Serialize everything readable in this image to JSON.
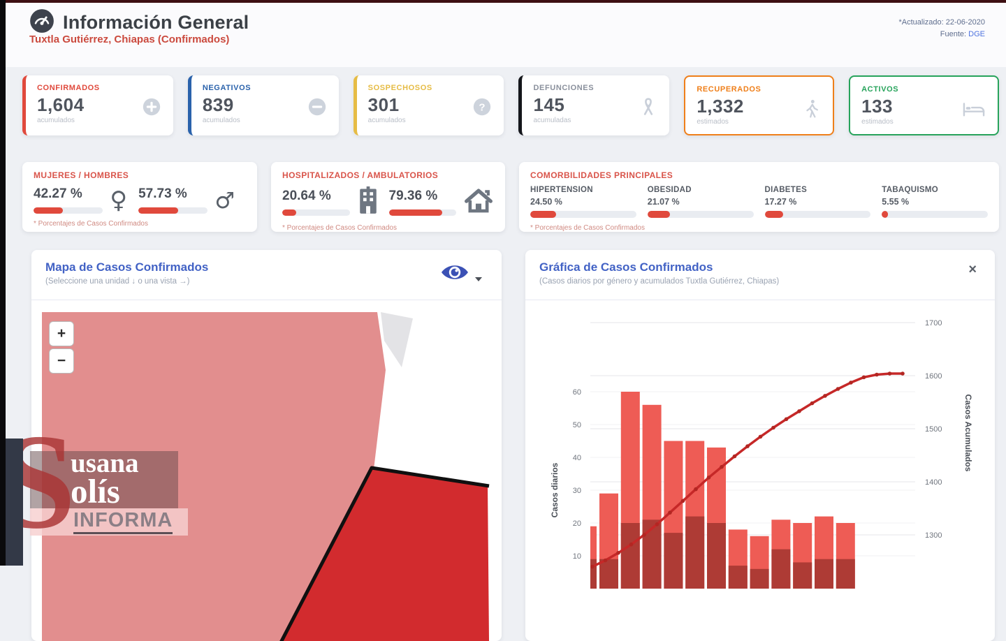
{
  "header": {
    "title": "Información General",
    "subtitle": "Tuxtla Gutiérrez, Chiapas (Confirmados)",
    "updated": "*Actualizado: 22-06-2020",
    "source_label": "Fuente:",
    "source_value": "DGE"
  },
  "stats": {
    "cards": [
      {
        "label": "CONFIRMADOS",
        "value": "1,604",
        "sub": "acumulados",
        "icon": "plus-circle-icon",
        "color": "#e0493c",
        "border_style": "left"
      },
      {
        "label": "NEGATIVOS",
        "value": "839",
        "sub": "acumulados",
        "icon": "minus-circle-icon",
        "color": "#2a62ab",
        "border_style": "left"
      },
      {
        "label": "SOSPECHOSOS",
        "value": "301",
        "sub": "acumulados",
        "icon": "question-circle-icon",
        "color": "#e6bc45",
        "border_style": "left"
      },
      {
        "label": "DEFUNCIONES",
        "value": "145",
        "sub": "acumuladas",
        "icon": "ribbon-icon",
        "color": "#14161b",
        "label_color": "#8a909c",
        "border_style": "left"
      },
      {
        "label": "RECUPERADOS",
        "value": "1,332",
        "sub": "estimados",
        "icon": "walking-person-icon",
        "color": "#ef7f1a",
        "border_style": "full"
      },
      {
        "label": "ACTIVOS",
        "value": "133",
        "sub": "estimados",
        "icon": "bed-icon",
        "color": "#27a35b",
        "border_style": "full"
      }
    ]
  },
  "gender_card": {
    "title": "MUJERES / HOMBRES",
    "left_value": "42.27 %",
    "left_pct": 42.27,
    "female_symbol": "♀",
    "right_value": "57.73 %",
    "right_pct": 57.73,
    "male_symbol": "♂",
    "note": "* Porcentajes de Casos Confirmados"
  },
  "hosp_card": {
    "title": "HOSPITALIZADOS / AMBULATORIOS",
    "left_value": "20.64 %",
    "left_pct": 20.64,
    "right_value": "79.36 %",
    "right_pct": 79.36,
    "note": "* Porcentajes de Casos Confirmados"
  },
  "comorbidities_card": {
    "title": "COMORBILIDADES PRINCIPALES",
    "note": "* Porcentajes de Casos Confirmados",
    "items": [
      {
        "label": "HIPERTENSION",
        "value": "24.50 %",
        "pct": 24.5
      },
      {
        "label": "OBESIDAD",
        "value": "21.07 %",
        "pct": 21.07
      },
      {
        "label": "DIABETES",
        "value": "17.27 %",
        "pct": 17.27
      },
      {
        "label": "TABAQUISMO",
        "value": "5.55 %",
        "pct": 5.55
      }
    ]
  },
  "map_card": {
    "title": "Mapa de Casos Confirmados",
    "subtitle": "(Seleccione una unidad ↓ o una vista →)",
    "zoom_in": "+",
    "zoom_out": "−"
  },
  "chart_card": {
    "title": "Gráfica de Casos Confirmados",
    "subtitle": "(Casos diarios por género y acumulados Tuxtla Gutiérrez, Chiapas)",
    "close": "×"
  },
  "watermark": {
    "initial": "S",
    "line1": "usana",
    "line2": "olís",
    "line3": "INFORMA"
  },
  "chart_data": {
    "type": "bar+line",
    "title": "Gráfica de Casos Confirmados",
    "ylabel_left": "Casos diarios",
    "ylabel_right": "Casos Acumulados",
    "yticks_left": [
      10,
      20,
      30,
      40,
      50,
      60
    ],
    "yticks_right": [
      1300,
      1400,
      1500,
      1600,
      1700
    ],
    "ylim_left": [
      0,
      70
    ],
    "ylim_right": [
      1240,
      1720
    ],
    "grid": true,
    "series": [
      {
        "name": "casos diarios género claro",
        "type": "bar",
        "values": [
          19,
          29,
          60,
          56,
          45,
          45,
          43,
          18,
          16,
          21,
          20,
          22,
          20
        ]
      },
      {
        "name": "casos diarios género oscuro",
        "type": "bar",
        "values": [
          9,
          9,
          20,
          21,
          17,
          22,
          20,
          7,
          6,
          12,
          8,
          9,
          9
        ]
      },
      {
        "name": "casos acumulados",
        "type": "line",
        "values": [
          1240,
          1252,
          1266,
          1282,
          1300,
          1320,
          1342,
          1364,
          1386,
          1408,
          1428,
          1448,
          1467,
          1485,
          1502,
          1518,
          1533,
          1548,
          1562,
          1575,
          1587,
          1597,
          1602,
          1604,
          1604
        ]
      }
    ],
    "colors": {
      "bar_light": "#ee5c55",
      "bar_dark": "#ae3b35",
      "line": "#c62828"
    }
  }
}
